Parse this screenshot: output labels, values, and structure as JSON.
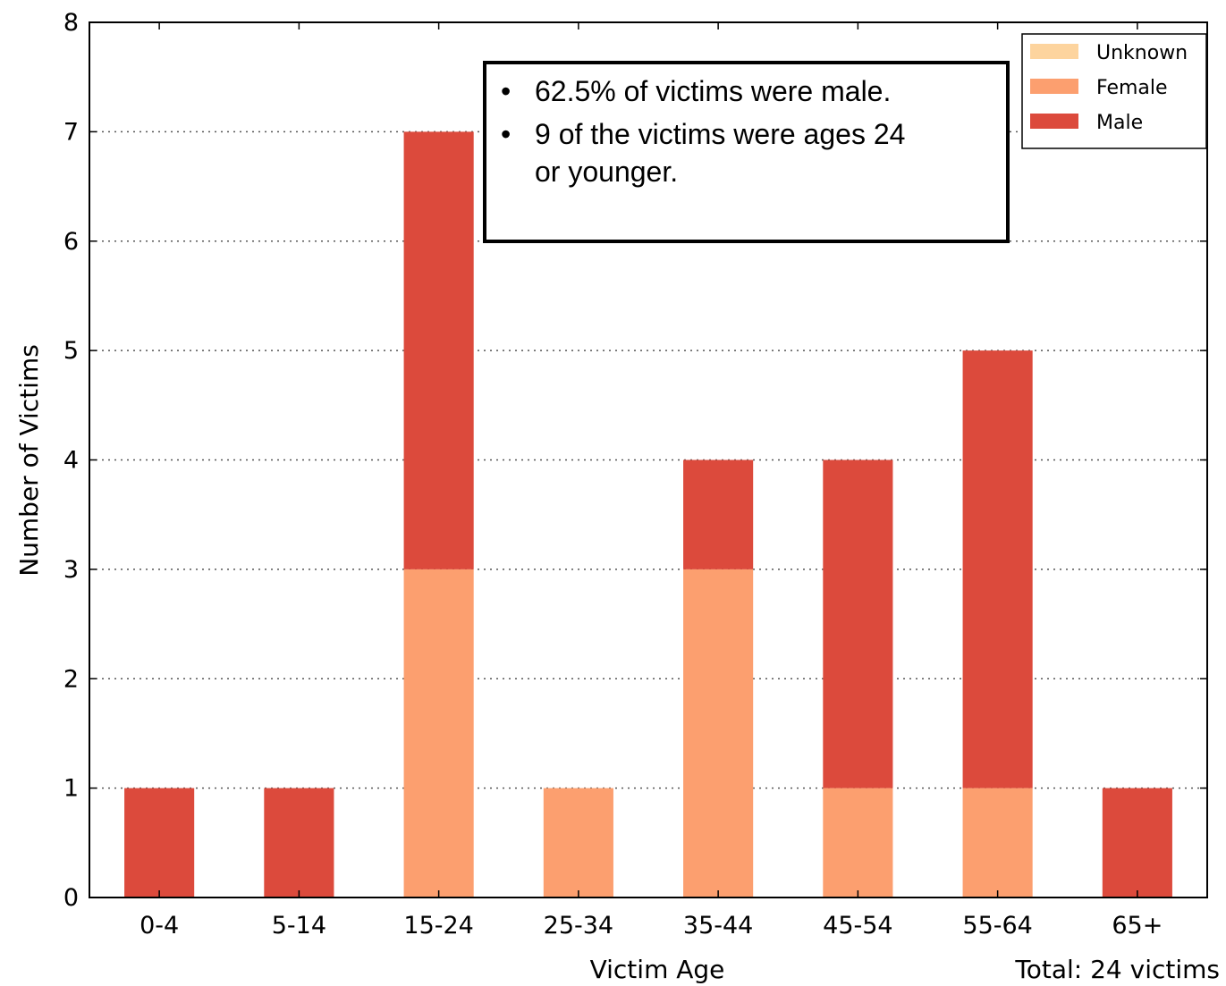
{
  "chart_data": {
    "type": "bar",
    "stacked": true,
    "categories": [
      "0-4",
      "5-14",
      "15-24",
      "25-34",
      "35-44",
      "45-54",
      "55-64",
      "65+"
    ],
    "series": [
      {
        "name": "Unknown",
        "color": "#fdd49e",
        "values": [
          0,
          0,
          0,
          0,
          0,
          0,
          0,
          0
        ]
      },
      {
        "name": "Female",
        "color": "#fc9f6f",
        "values": [
          0,
          0,
          3,
          1,
          3,
          1,
          1,
          0
        ]
      },
      {
        "name": "Male",
        "color": "#dc4a3c",
        "values": [
          1,
          1,
          4,
          0,
          1,
          3,
          4,
          1
        ]
      }
    ],
    "xlabel": "Victim Age",
    "ylabel": "Number of Victims",
    "ylim": [
      0,
      8
    ],
    "yticks": [
      0,
      1,
      2,
      3,
      4,
      5,
      6,
      7,
      8
    ],
    "grid": "horizontal dotted",
    "legend_position": "top-right",
    "total_label": "Total: 24 victims"
  },
  "annotation": {
    "bullets": [
      "62.5% of victims were male.",
      "9 of the victims were ages 24",
      "or younger."
    ],
    "bullet_symbol": "•"
  }
}
